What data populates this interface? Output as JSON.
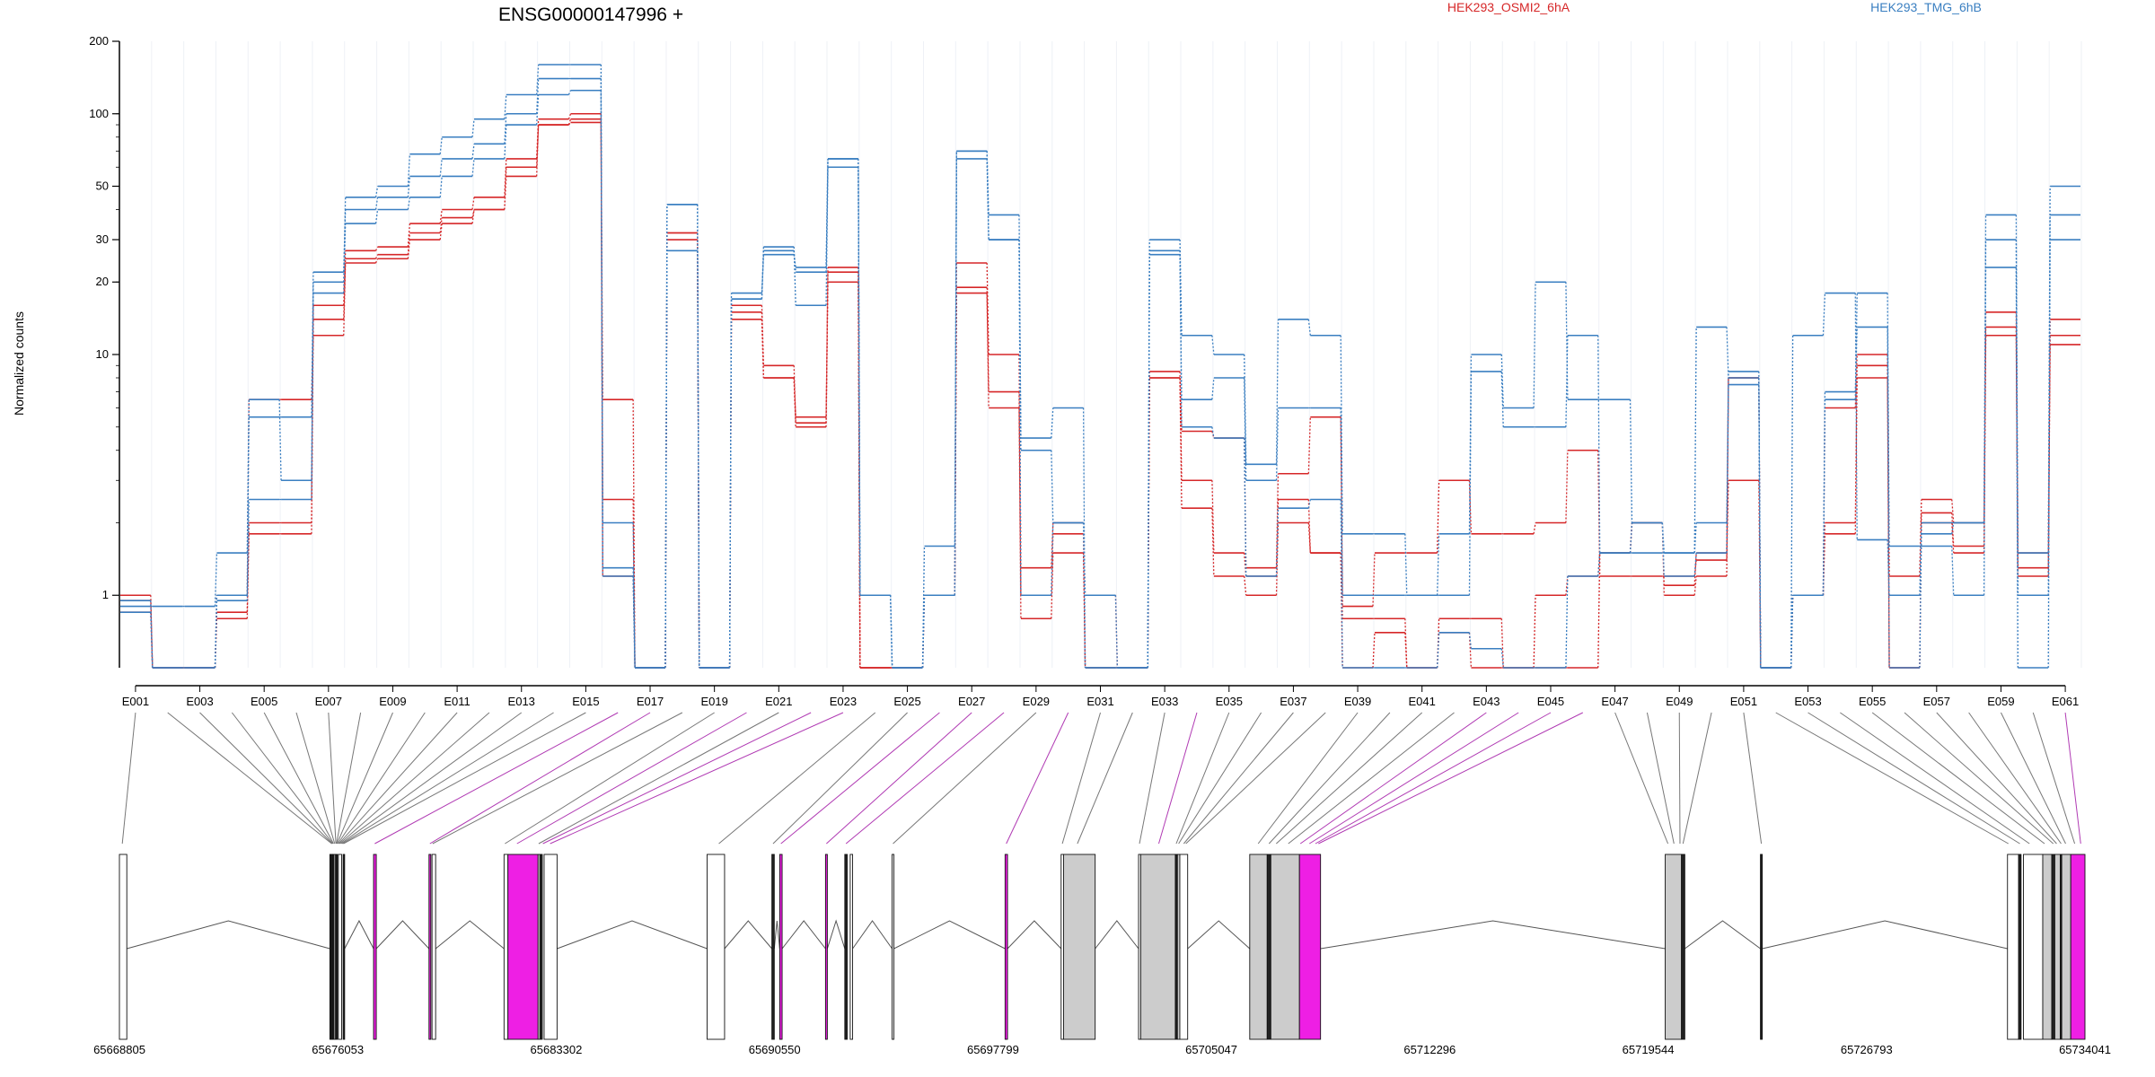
{
  "chart_data": {
    "type": "line",
    "title": "ENSG00000147996 +",
    "ylabel": "Normalized counts",
    "yscale": "log",
    "ylim": [
      0.5,
      200
    ],
    "yticks": [
      "200",
      "100",
      "50",
      "30",
      "20",
      "10",
      "1"
    ],
    "ytick_values": [
      200,
      100,
      50,
      30,
      20,
      10,
      1
    ],
    "exon_axis_labels": [
      "E001",
      "E003",
      "E005",
      "E007",
      "E009",
      "E011",
      "E013",
      "E015",
      "E017",
      "E019",
      "E021",
      "E023",
      "E025",
      "E027",
      "E029",
      "E031",
      "E033",
      "E035",
      "E037",
      "E039",
      "E041",
      "E043",
      "E045",
      "E047",
      "E049",
      "E051",
      "E053",
      "E055",
      "E057",
      "E059",
      "E061"
    ],
    "categories": [
      "E001",
      "E002",
      "E003",
      "E004",
      "E005",
      "E006",
      "E007",
      "E008",
      "E009",
      "E010",
      "E011",
      "E012",
      "E013",
      "E014",
      "E015",
      "E016",
      "E017",
      "E018",
      "E019",
      "E020",
      "E021",
      "E022",
      "E023",
      "E024",
      "E025",
      "E026",
      "E027",
      "E028",
      "E029",
      "E030",
      "E031",
      "E032",
      "E033",
      "E034",
      "E035",
      "E036",
      "E037",
      "E038",
      "E039",
      "E040",
      "E041",
      "E042",
      "E043",
      "E044",
      "E045",
      "E046",
      "E047",
      "E048",
      "E049",
      "E050",
      "E051",
      "E052",
      "E053",
      "E054",
      "E055",
      "E056",
      "E057",
      "E058",
      "E059",
      "E060",
      "E061"
    ],
    "legend": [
      {
        "name": "HEK293_OSMI2_6hA",
        "color": "#d62728"
      },
      {
        "name": "HEK293_TMG_6hB",
        "color": "#3a7fc1"
      }
    ],
    "series": [
      {
        "group": "HEK293_OSMI2_6hA",
        "color": "#d62728",
        "values": [
          1.0,
          0.5,
          0.5,
          0.8,
          1.8,
          1.8,
          14,
          25,
          26,
          32,
          37,
          40,
          60,
          90,
          95,
          2.5,
          0.5,
          30,
          0.5,
          14,
          8,
          5,
          20,
          0.5,
          0.5,
          1.0,
          18,
          6,
          0.8,
          1.5,
          0.5,
          0.5,
          8,
          2.3,
          1.2,
          1.0,
          2.0,
          1.5,
          0.5,
          0.7,
          0.5,
          0.7,
          0.5,
          0.5,
          0.5,
          0.5,
          1.5,
          2.0,
          1.0,
          1.2,
          8,
          0.5,
          1.0,
          1.8,
          8,
          0.5,
          2.0,
          1.5,
          12,
          1.2,
          11
        ]
      },
      {
        "group": "HEK293_OSMI2_6hA",
        "color": "#d62728",
        "values": [
          0.85,
          0.5,
          0.5,
          0.85,
          2.0,
          2.0,
          16,
          27,
          28,
          35,
          40,
          45,
          65,
          95,
          100,
          1.2,
          0.5,
          32,
          0.5,
          16,
          9,
          5.2,
          23,
          0.5,
          0.5,
          1.0,
          19,
          7,
          1.0,
          1.8,
          0.5,
          0.5,
          8.5,
          3.0,
          1.5,
          1.2,
          2.5,
          1.5,
          0.8,
          0.8,
          0.5,
          0.8,
          0.8,
          0.5,
          1.0,
          1.2,
          1.5,
          2.0,
          1.1,
          1.5,
          8,
          0.5,
          1.0,
          2.0,
          9,
          0.5,
          2.2,
          1.6,
          13,
          1.3,
          12
        ]
      },
      {
        "group": "HEK293_OSMI2_6hA",
        "color": "#d62728",
        "values": [
          0.95,
          0.5,
          0.5,
          1.0,
          6.5,
          6.5,
          12,
          24,
          25,
          30,
          35,
          40,
          55,
          90,
          92,
          6.5,
          0.5,
          32,
          0.5,
          15,
          8,
          5.5,
          22,
          0.5,
          0.5,
          1.0,
          24,
          10,
          1.3,
          2.0,
          1.0,
          0.5,
          8,
          4.8,
          4.5,
          1.3,
          3.2,
          5.5,
          0.9,
          1.5,
          1.5,
          3.0,
          1.8,
          1.8,
          2.0,
          4.0,
          1.2,
          1.2,
          1.2,
          1.4,
          3.0,
          0.5,
          1.0,
          6.0,
          10,
          1.2,
          2.5,
          2.0,
          15,
          1.5,
          14
        ]
      },
      {
        "group": "HEK293_TMG_6hB",
        "color": "#3a7fc1",
        "values": [
          0.85,
          0.5,
          0.5,
          0.95,
          2.5,
          2.5,
          18,
          35,
          40,
          45,
          55,
          65,
          90,
          120,
          125,
          1.2,
          0.5,
          27,
          0.5,
          17,
          28,
          16,
          60,
          1.0,
          0.5,
          1.0,
          65,
          30,
          1.0,
          2.0,
          0.5,
          0.5,
          26,
          5,
          4.5,
          1.2,
          2.3,
          2.5,
          0.5,
          0.5,
          0.5,
          0.7,
          0.6,
          0.5,
          0.5,
          1.2,
          1.5,
          2.0,
          1.2,
          1.5,
          7.5,
          0.5,
          1.0,
          7,
          13,
          0.5,
          1.8,
          2.0,
          23,
          0.5,
          30
        ]
      },
      {
        "group": "HEK293_TMG_6hB",
        "color": "#3a7fc1",
        "values": [
          0.95,
          0.5,
          0.5,
          1.0,
          5.5,
          5.5,
          22,
          40,
          45,
          55,
          65,
          75,
          100,
          140,
          140,
          2.0,
          0.5,
          42,
          0.5,
          17,
          27,
          22,
          65,
          1.0,
          0.5,
          1.0,
          70,
          30,
          4.0,
          2.0,
          1.0,
          0.5,
          27,
          6.5,
          8,
          3.0,
          6.0,
          6.0,
          1.0,
          1.0,
          1.0,
          1.0,
          8.5,
          5.0,
          5.0,
          12,
          1.5,
          1.5,
          1.5,
          2.0,
          8.5,
          0.5,
          1.0,
          6.5,
          18,
          1.6,
          1.6,
          1.0,
          30,
          1.0,
          38
        ]
      },
      {
        "group": "HEK293_TMG_6hB",
        "color": "#3a7fc1",
        "values": [
          0.9,
          0.9,
          0.9,
          1.5,
          6.5,
          3.0,
          20,
          45,
          50,
          68,
          80,
          95,
          120,
          160,
          160,
          1.3,
          0.5,
          42,
          0.5,
          18,
          26,
          23,
          65,
          1.0,
          0.5,
          1.6,
          70,
          38,
          4.5,
          6.0,
          0.5,
          0.5,
          30,
          12,
          10,
          3.5,
          14,
          12,
          1.8,
          1.8,
          1.0,
          1.8,
          10,
          6.0,
          20,
          6.5,
          6.5,
          2.0,
          1.5,
          13,
          8,
          0.5,
          12,
          18,
          1.7,
          1.0,
          2.0,
          2.0,
          38,
          1.5,
          50
        ]
      }
    ],
    "genomic_axis_labels": [
      "65668805",
      "65676053",
      "65683302",
      "65690550",
      "65697799",
      "65705047",
      "65712296",
      "65719544",
      "65726793",
      "65734041"
    ]
  }
}
